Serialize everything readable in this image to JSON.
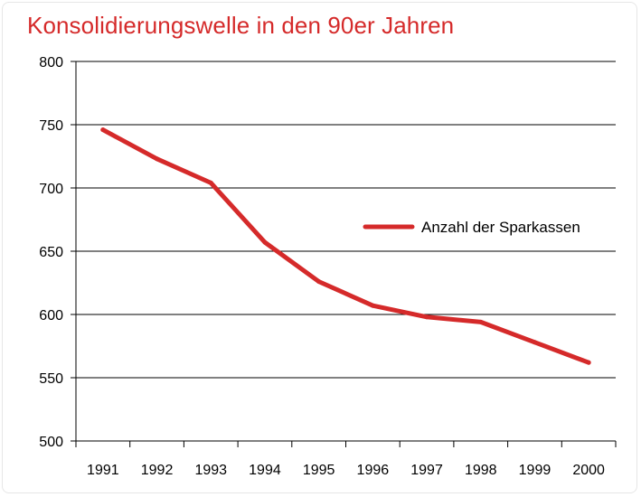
{
  "chart_data": {
    "type": "line",
    "title": "Konsolidierungswelle in den 90er Jahren",
    "xlabel": "",
    "ylabel": "",
    "categories": [
      "1991",
      "1992",
      "1993",
      "1994",
      "1995",
      "1996",
      "1997",
      "1998",
      "1999",
      "2000"
    ],
    "series": [
      {
        "name": "Anzahl der Sparkassen",
        "values": [
          746,
          723,
          704,
          657,
          626,
          607,
          598,
          594,
          578,
          562
        ],
        "color": "#d52a2a"
      }
    ],
    "ylim": [
      500,
      800
    ],
    "yticks": [
      "500",
      "550",
      "600",
      "650",
      "700",
      "750",
      "800"
    ],
    "grid": "horizontal",
    "legend_placement": "right"
  }
}
